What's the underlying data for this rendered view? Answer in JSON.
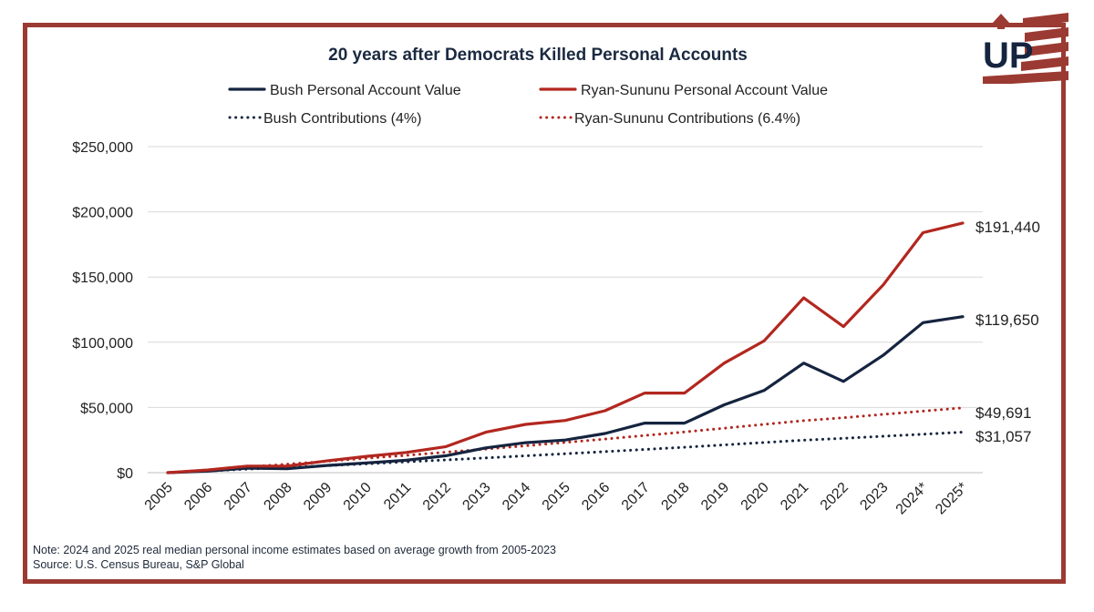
{
  "colors": {
    "navy": "#15243f",
    "red": "#b2271f",
    "frame": "#9b3a32",
    "grid": "#d9d9d9"
  },
  "logo": {
    "text": "UP",
    "icon": "up-flag-logo"
  },
  "note": {
    "line1": "Note: 2024 and 2025 real median personal income estimates based on average growth from 2005-2023",
    "line2": "Source: U.S. Census Bureau, S&P Global"
  },
  "chart_data": {
    "type": "line",
    "title": "20 years after Democrats Killed Personal Accounts",
    "xlabel": "",
    "ylabel": "",
    "ylim": [
      0,
      250000
    ],
    "yticks": [
      0,
      50000,
      100000,
      150000,
      200000,
      250000
    ],
    "ytick_labels": [
      "$0",
      "$50,000",
      "$100,000",
      "$150,000",
      "$200,000",
      "$250,000"
    ],
    "grid": true,
    "legend_position": "top",
    "categories": [
      "2005",
      "2006",
      "2007",
      "2008",
      "2009",
      "2010",
      "2011",
      "2012",
      "2013",
      "2014",
      "2015",
      "2016",
      "2017",
      "2018",
      "2019",
      "2020",
      "2021",
      "2022",
      "2023",
      "2024*",
      "2025*"
    ],
    "series": [
      {
        "name": "Bush Personal Account Value",
        "style": "solid",
        "color": "#15243f",
        "values": [
          0,
          1200,
          3500,
          3000,
          5500,
          7500,
          9500,
          13000,
          19000,
          23000,
          25000,
          30000,
          38000,
          38000,
          52000,
          63000,
          84000,
          70000,
          90000,
          115000,
          119650
        ],
        "end_label": "$119,650"
      },
      {
        "name": "Ryan-Sununu Personal Account Value",
        "style": "solid",
        "color": "#b2271f",
        "values": [
          0,
          2000,
          5000,
          5000,
          9000,
          12500,
          15500,
          20000,
          31000,
          37000,
          40000,
          47500,
          61000,
          61000,
          84000,
          101000,
          134000,
          112000,
          144000,
          184000,
          191440
        ],
        "end_label": "$191,440"
      },
      {
        "name": "Bush Contributions (4%)",
        "style": "dotted",
        "color": "#15243f",
        "values": [
          0,
          1300,
          2700,
          4000,
          5400,
          6800,
          8300,
          9800,
          11300,
          12900,
          14500,
          16100,
          17800,
          19500,
          21300,
          23100,
          24900,
          26300,
          27900,
          29500,
          31057
        ],
        "end_label": "$31,057"
      },
      {
        "name": "Ryan-Sununu Contributions (6.4%)",
        "style": "dotted",
        "color": "#b2271f",
        "values": [
          0,
          2100,
          4300,
          6500,
          8700,
          11000,
          13300,
          15700,
          18100,
          20600,
          23200,
          25800,
          28500,
          31200,
          34100,
          37000,
          39900,
          42100,
          44700,
          47200,
          49691
        ],
        "end_label": "$49,691"
      }
    ]
  }
}
